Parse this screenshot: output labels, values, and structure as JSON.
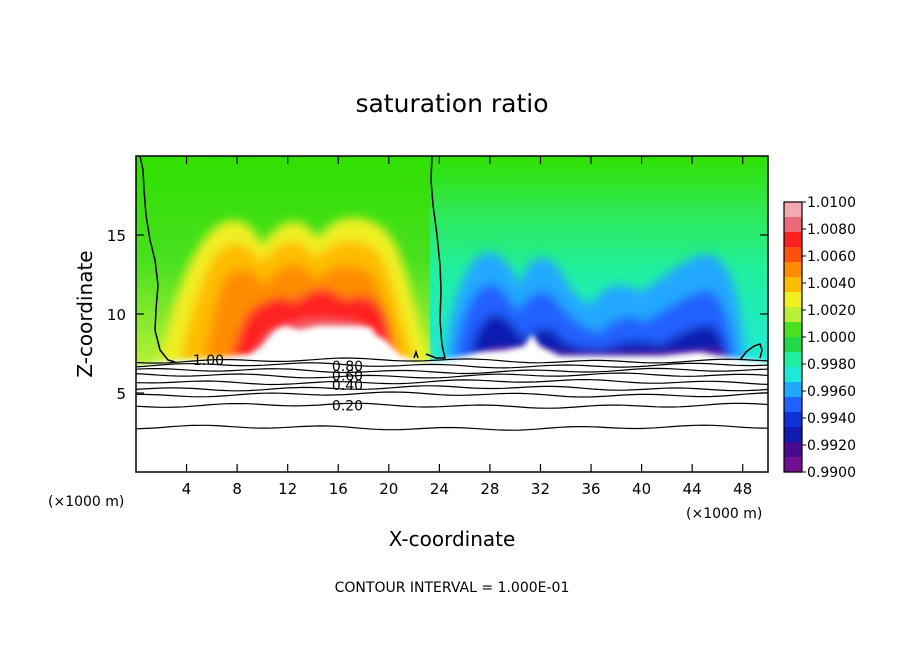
{
  "chart_data": {
    "type": "heatmap",
    "title": "saturation ratio",
    "xlabel": "X-coordinate",
    "ylabel": "Z-coordinate",
    "x_unit_left": "(×1000 m)",
    "x_unit_right": "(×1000 m)",
    "x_ticks": [
      4,
      8,
      12,
      16,
      20,
      24,
      28,
      32,
      36,
      40,
      44,
      48
    ],
    "y_ticks": [
      5,
      10,
      15
    ],
    "xlim": [
      0,
      50
    ],
    "ylim": [
      0,
      20
    ],
    "footer": "CONTOUR INTERVAL = 1.000E-01",
    "colorbar": {
      "labels": [
        "1.0100",
        "1.0080",
        "1.0060",
        "1.0040",
        "1.0020",
        "1.0000",
        "0.9980",
        "0.9960",
        "0.9940",
        "0.9920",
        "0.9900"
      ],
      "colors": [
        "#f4a8b0",
        "#ec6a78",
        "#ff2020",
        "#ff5010",
        "#ff8c00",
        "#ffbc00",
        "#f0ef20",
        "#b8f038",
        "#48e020",
        "#20d84a",
        "#20f0a0",
        "#20e8d8",
        "#20a8ff",
        "#2060ff",
        "#1030d8",
        "#101ab0",
        "#4a0a90",
        "#701090"
      ]
    },
    "contour_labels": [
      {
        "text": "1.00",
        "x": 4.5,
        "z": 7.1
      },
      {
        "text": "0.80",
        "x": 15.5,
        "z": 6.7
      },
      {
        "text": "0.60",
        "x": 15.5,
        "z": 6.1
      },
      {
        "text": "0.40",
        "x": 15.5,
        "z": 5.5
      },
      {
        "text": "0.20",
        "x": 15.5,
        "z": 4.2
      }
    ],
    "contour_levels_z": [
      7.05,
      6.75,
      6.4,
      6.1,
      5.7,
      5.3,
      4.9,
      4.2,
      2.8
    ]
  }
}
